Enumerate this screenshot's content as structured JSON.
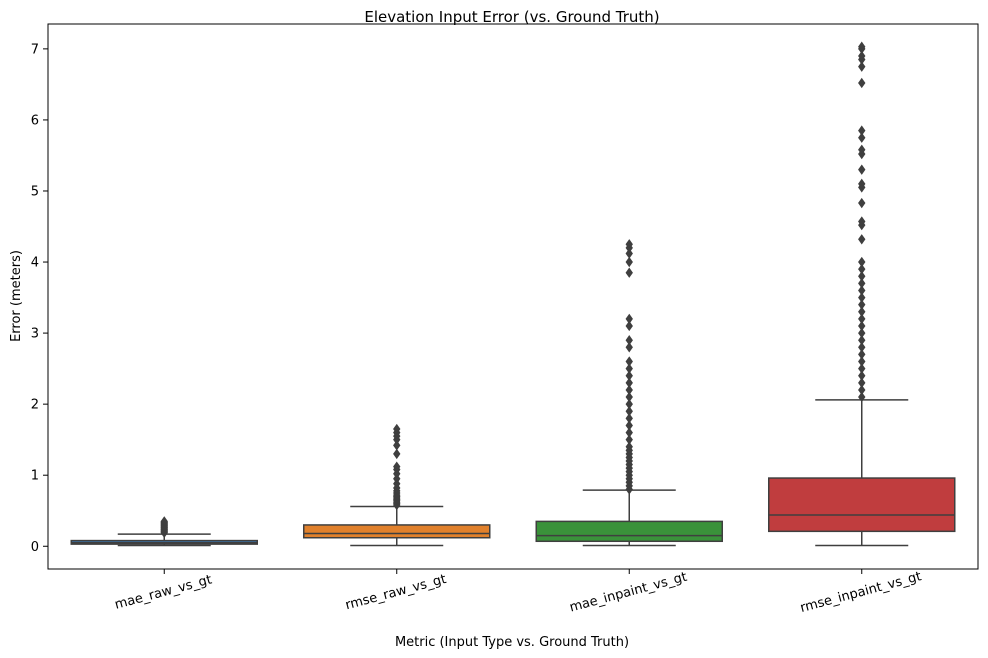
{
  "chart_data": {
    "type": "boxplot",
    "title": "Elevation Input Error (vs. Ground Truth)",
    "xlabel": "Metric (Input Type vs. Ground Truth)",
    "ylabel": "Error (meters)",
    "ylim": [
      -0.32,
      7.35
    ],
    "yticks": [
      0,
      1,
      2,
      3,
      4,
      5,
      6,
      7
    ],
    "grid": false,
    "categories": [
      "mae_raw_vs_gt",
      "rmse_raw_vs_gt",
      "mae_inpaint_vs_gt",
      "rmse_inpaint_vs_gt"
    ],
    "boxes": [
      {
        "category": "mae_raw_vs_gt",
        "color": "#3a73a8",
        "whisker_low": 0.01,
        "q1": 0.03,
        "median": 0.05,
        "q3": 0.08,
        "whisker_high": 0.17,
        "outliers": [
          0.19,
          0.2,
          0.21,
          0.22,
          0.23,
          0.24,
          0.25,
          0.26,
          0.27,
          0.28,
          0.29,
          0.3,
          0.31,
          0.32,
          0.33,
          0.34,
          0.35
        ]
      },
      {
        "category": "rmse_raw_vs_gt",
        "color": "#e1812c",
        "whisker_low": 0.01,
        "q1": 0.12,
        "median": 0.18,
        "q3": 0.3,
        "whisker_high": 0.56,
        "outliers": [
          0.58,
          0.6,
          0.62,
          0.64,
          0.66,
          0.68,
          0.7,
          0.72,
          0.75,
          0.78,
          0.82,
          0.88,
          0.95,
          1.02,
          1.08,
          1.12,
          1.3,
          1.42,
          1.5,
          1.55,
          1.6,
          1.65
        ]
      },
      {
        "category": "mae_inpaint_vs_gt",
        "color": "#3a923a",
        "whisker_low": 0.01,
        "q1": 0.07,
        "median": 0.15,
        "q3": 0.35,
        "whisker_high": 0.79,
        "outliers": [
          0.8,
          0.85,
          0.9,
          0.95,
          1.0,
          1.05,
          1.1,
          1.15,
          1.2,
          1.25,
          1.3,
          1.35,
          1.4,
          1.5,
          1.6,
          1.7,
          1.8,
          1.9,
          2.0,
          2.1,
          2.2,
          2.3,
          2.4,
          2.5,
          2.6,
          2.8,
          2.9,
          3.1,
          3.2,
          3.85,
          4.0,
          4.12,
          4.2,
          4.25
        ]
      },
      {
        "category": "rmse_inpaint_vs_gt",
        "color": "#c03d3e",
        "whisker_low": 0.01,
        "q1": 0.21,
        "median": 0.44,
        "q3": 0.96,
        "whisker_high": 2.06,
        "outliers": [
          2.1,
          2.2,
          2.3,
          2.4,
          2.5,
          2.6,
          2.7,
          2.8,
          2.9,
          3.0,
          3.1,
          3.2,
          3.3,
          3.4,
          3.5,
          3.6,
          3.7,
          3.8,
          3.9,
          4.0,
          4.32,
          4.52,
          4.57,
          4.83,
          5.05,
          5.1,
          5.3,
          5.52,
          5.58,
          5.75,
          5.85,
          6.52,
          6.75,
          6.85,
          6.9,
          7.0,
          7.03
        ]
      }
    ]
  }
}
